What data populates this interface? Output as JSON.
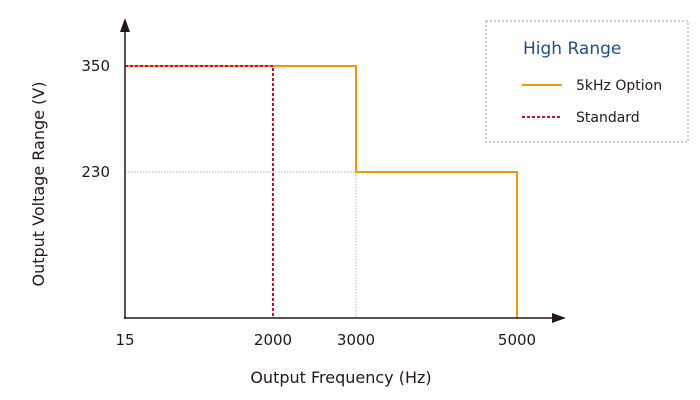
{
  "chart_data": {
    "type": "line",
    "title": "",
    "xlabel": "Output Frequency (Hz)",
    "ylabel": "Output Voltage Range (V)",
    "x_ticks": [
      15,
      2000,
      3000,
      5000
    ],
    "y_ticks": [
      230,
      350
    ],
    "grid": "partial dotted reference lines at 230 V and 3000 Hz",
    "legend": {
      "title": "High Range",
      "placement": "top-right"
    },
    "series": [
      {
        "name": "5kHz Option",
        "color": "#f39800",
        "style": "solid",
        "points": [
          [
            15,
            350
          ],
          [
            3000,
            350
          ],
          [
            3000,
            230
          ],
          [
            5000,
            230
          ],
          [
            5000,
            0
          ]
        ]
      },
      {
        "name": "Standard",
        "color": "#c8102e",
        "style": "dotted",
        "points": [
          [
            15,
            350
          ],
          [
            2000,
            350
          ],
          [
            2000,
            0
          ]
        ]
      }
    ],
    "axis_color": "#231815"
  }
}
